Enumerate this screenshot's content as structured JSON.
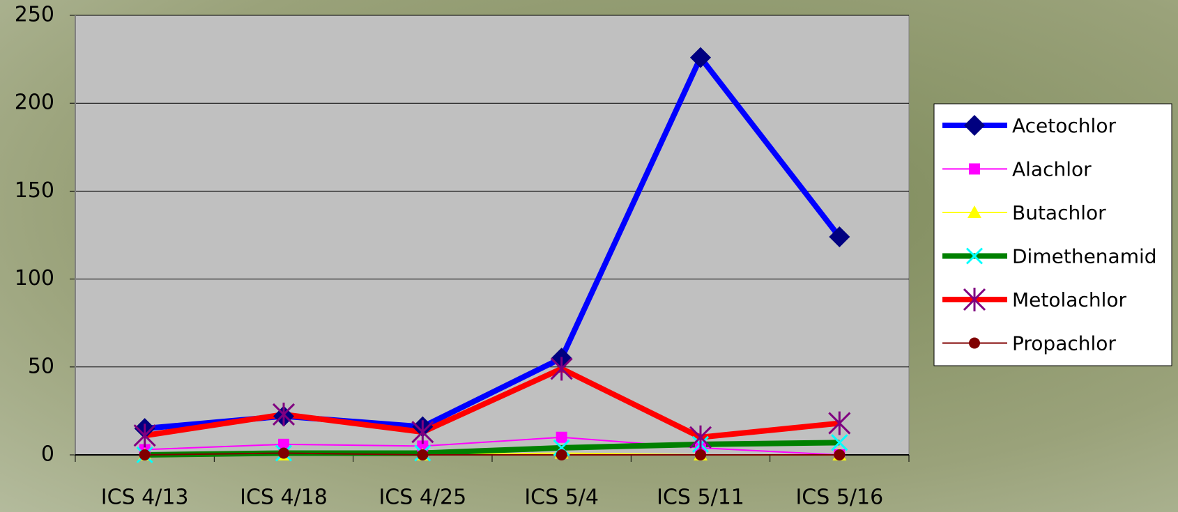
{
  "chart_data": {
    "type": "line",
    "categories": [
      "ICS 4/13",
      "ICS 4/18",
      "ICS 4/25",
      "ICS 5/4",
      "ICS 5/11",
      "ICS 5/16"
    ],
    "ylim": [
      0,
      250
    ],
    "yticks": [
      0,
      50,
      100,
      150,
      200,
      250
    ],
    "grid": true,
    "legend": "right",
    "series": [
      {
        "name": "Acetochlor",
        "color": "#0000ff",
        "marker": "diamond",
        "marker_color": "#000080",
        "width": 8,
        "values": [
          15,
          22,
          16,
          55,
          226,
          124
        ]
      },
      {
        "name": "Alachlor",
        "color": "#ff00ff",
        "marker": "square",
        "marker_color": "#ff00ff",
        "width": 2,
        "values": [
          3,
          6,
          5,
          10,
          4,
          0
        ]
      },
      {
        "name": "Butachlor",
        "color": "#ffff00",
        "marker": "triangle",
        "marker_color": "#ffff00",
        "width": 2,
        "values": [
          0,
          0,
          0,
          1,
          0,
          0
        ]
      },
      {
        "name": "Dimethenamid",
        "color": "#008000",
        "marker": "x",
        "marker_color": "#00ffff",
        "width": 8,
        "values": [
          0,
          1,
          1,
          4,
          6,
          7
        ]
      },
      {
        "name": "Metolachlor",
        "color": "#ff0000",
        "marker": "star",
        "marker_color": "#800080",
        "width": 8,
        "values": [
          11,
          23,
          13,
          49,
          10,
          18
        ]
      },
      {
        "name": "Propachlor",
        "color": "#800000",
        "marker": "circle",
        "marker_color": "#800000",
        "width": 2,
        "values": [
          0,
          1,
          0,
          0,
          0,
          0
        ]
      }
    ]
  }
}
